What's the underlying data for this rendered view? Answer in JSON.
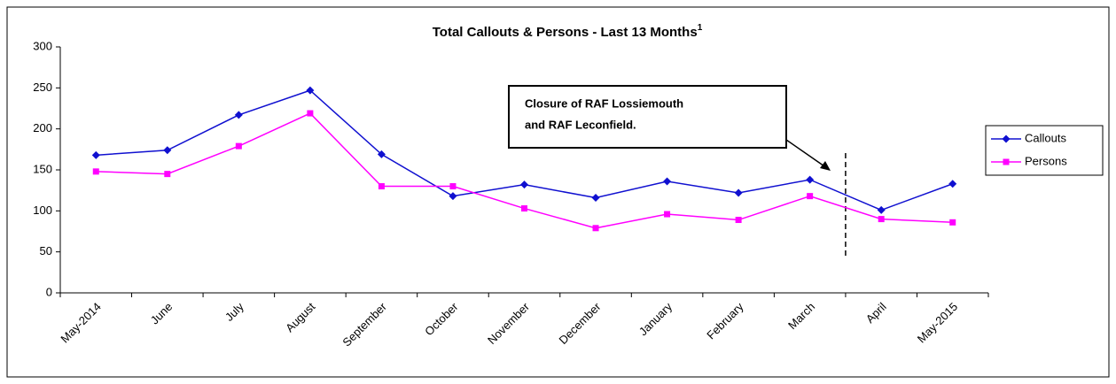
{
  "chart_data": {
    "type": "line",
    "title": "Total Callouts & Persons - Last 13 Months",
    "title_note": "1",
    "annotation": [
      "Closure of RAF Lossiemouth",
      "and RAF Leconfield."
    ],
    "categories": [
      "May-2014",
      "June",
      "July",
      "August",
      "September",
      "October",
      "November",
      "December",
      "January",
      "February",
      "March",
      "April",
      "May-2015"
    ],
    "series": [
      {
        "name": "Callouts",
        "color": "#1010d0",
        "marker": "diamond",
        "values": [
          168,
          174,
          217,
          247,
          169,
          118,
          132,
          116,
          136,
          122,
          138,
          101,
          133
        ]
      },
      {
        "name": "Persons",
        "color": "#ff00ff",
        "marker": "square",
        "values": [
          148,
          145,
          179,
          219,
          130,
          130,
          103,
          79,
          96,
          89,
          118,
          90,
          86
        ]
      }
    ],
    "ylim": [
      0,
      300
    ],
    "yticks": [
      0,
      50,
      100,
      150,
      200,
      250,
      300
    ],
    "grid": false,
    "legend": "right"
  }
}
